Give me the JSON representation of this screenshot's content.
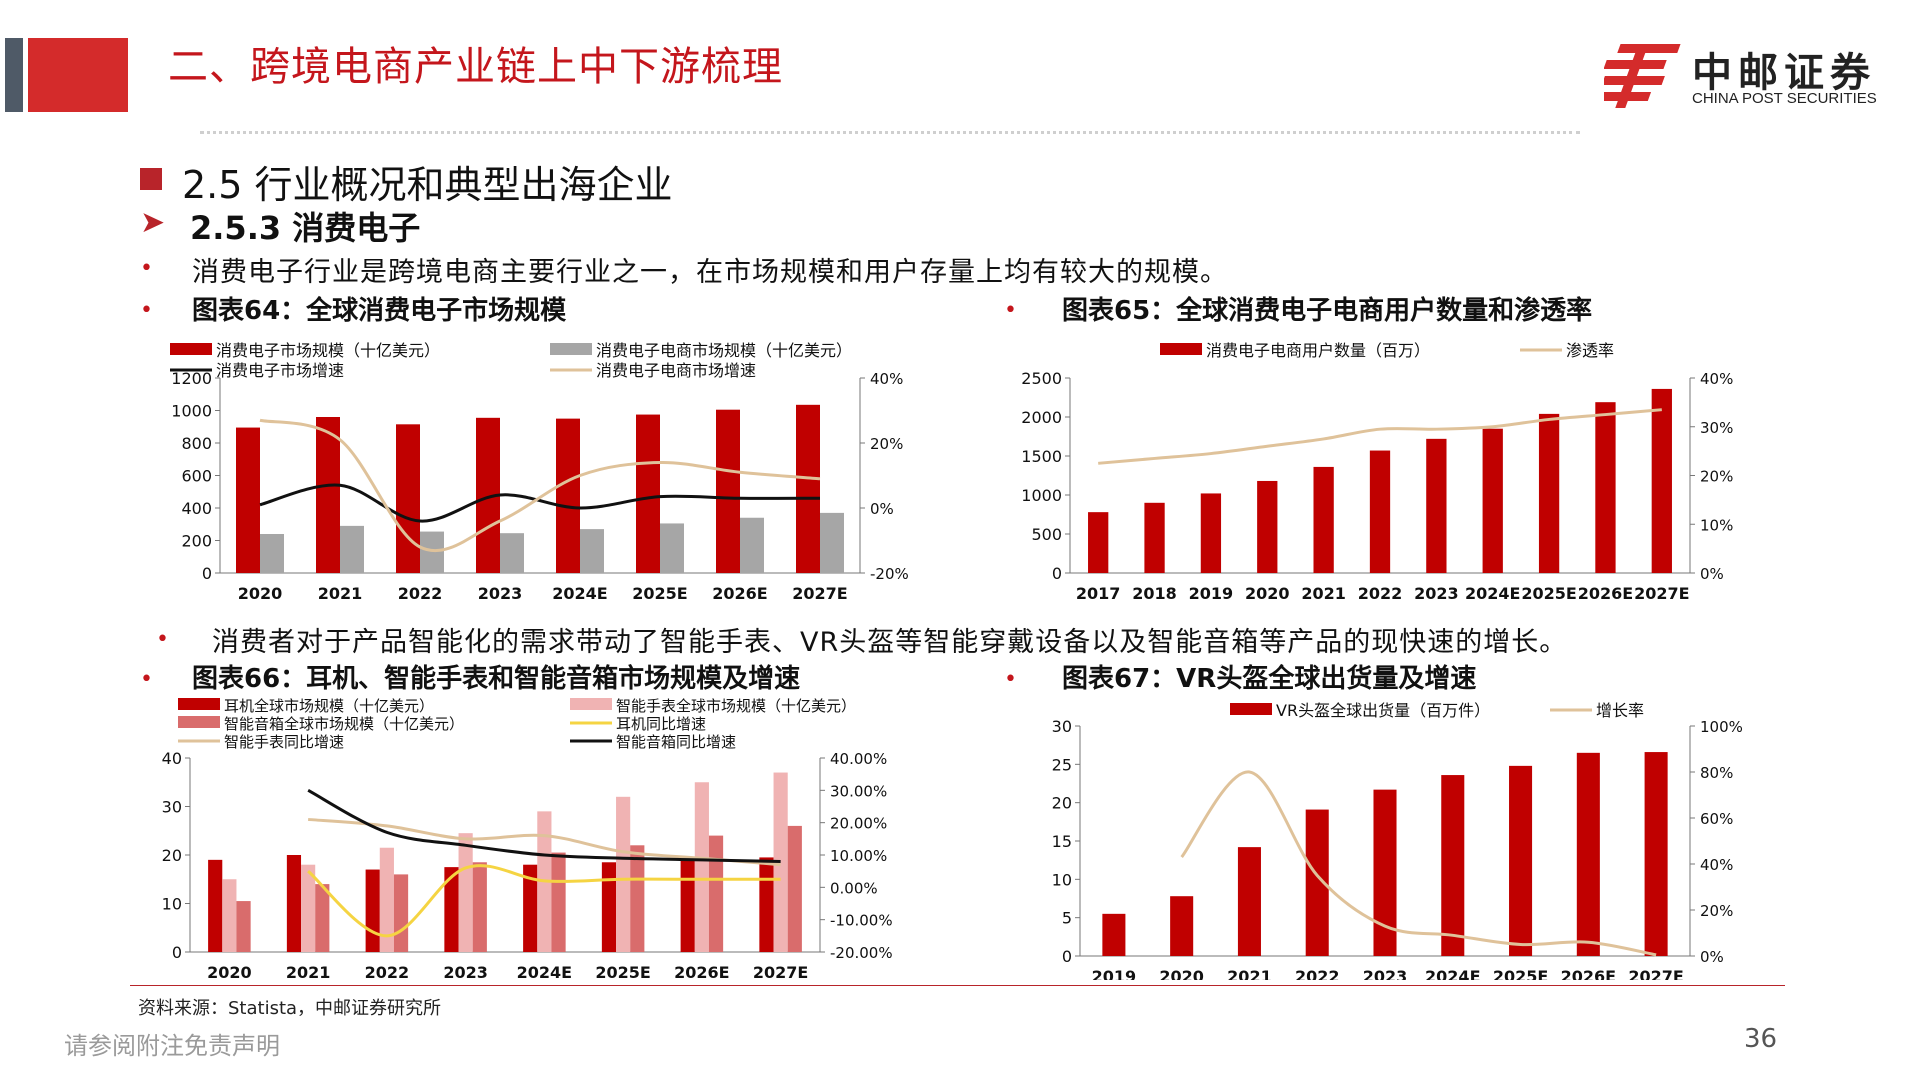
{
  "header": {
    "title": "二、跨境电商产业链上中下游梳理",
    "logo_cn": "中邮证券",
    "logo_en": "CHINA POST SECURITIES"
  },
  "section": {
    "title": "2.5 行业概况和典型出海企业",
    "subtitle": "2.5.3 消费电子",
    "bullet1": "消费电子行业是跨境电商主要行业之一，在市场规模和用户存量上均有较大的规模。",
    "bullet2": "消费者对于产品智能化的需求带动了智能手表、VR头盔等智能穿戴设备以及智能音箱等产品的现快速的增长。"
  },
  "figures": {
    "fig64": "图表64：全球消费电子市场规模",
    "fig65": "图表65：全球消费电子电商用户数量和渗透率",
    "fig66": "图表66：耳机、智能手表和智能音箱市场规模及增速",
    "fig67": "图表67：VR头盔全球出货量及增速"
  },
  "footer": {
    "source": "资料来源：Statista，中邮证券研究所",
    "disclaimer": "请参阅附注免责声明",
    "page": "36"
  },
  "colors": {
    "red": "#c00000",
    "gray": "#a6a6a6",
    "tan": "#dfc29a",
    "pink": "#f0b3b3",
    "salmon": "#d96c6c",
    "yellow": "#f5d442",
    "black": "#111111"
  },
  "chart_data": [
    {
      "id": "fig64",
      "type": "bar",
      "categories": [
        "2020",
        "2021",
        "2022",
        "2023",
        "2024E",
        "2025E",
        "2026E",
        "2027E"
      ],
      "ylim": [
        0,
        1200
      ],
      "yticks": [
        "0",
        "200",
        "400",
        "600",
        "800",
        "1000",
        "1200"
      ],
      "y2lim": [
        -20,
        40
      ],
      "y2ticks": [
        "-20%",
        "0%",
        "20%",
        "40%"
      ],
      "series": [
        {
          "name": "消费电子市场规模（十亿美元）",
          "kind": "bar",
          "axis": "left",
          "color": "#c00000",
          "values": [
            895,
            960,
            915,
            955,
            950,
            975,
            1005,
            1035
          ]
        },
        {
          "name": "消费电子电商市场规模（十亿美元）",
          "kind": "bar",
          "axis": "left",
          "color": "#a6a6a6",
          "values": [
            240,
            290,
            255,
            245,
            270,
            305,
            340,
            370
          ]
        },
        {
          "name": "消费电子市场增速",
          "kind": "line",
          "axis": "right",
          "color": "#111111",
          "values": [
            1,
            7,
            -4,
            4,
            0,
            3.5,
            3,
            3
          ]
        },
        {
          "name": "消费电子电商市场增速",
          "kind": "line",
          "axis": "right",
          "color": "#dfc29a",
          "values": [
            27,
            21,
            -12,
            -4,
            10,
            14,
            11,
            9
          ]
        }
      ]
    },
    {
      "id": "fig65",
      "type": "bar",
      "categories": [
        "2017",
        "2018",
        "2019",
        "2020",
        "2021",
        "2022",
        "2023",
        "2024E",
        "2025E",
        "2026E",
        "2027E"
      ],
      "ylim": [
        0,
        2500
      ],
      "yticks": [
        "0",
        "500",
        "1000",
        "1500",
        "2000",
        "2500"
      ],
      "y2lim": [
        0,
        40
      ],
      "y2ticks": [
        "0%",
        "10%",
        "20%",
        "30%",
        "40%"
      ],
      "series": [
        {
          "name": "消费电子电商用户数量（百万）",
          "kind": "bar",
          "axis": "left",
          "color": "#c00000",
          "values": [
            780,
            900,
            1020,
            1180,
            1360,
            1570,
            1720,
            1850,
            2040,
            2190,
            2360
          ]
        },
        {
          "name": "渗透率",
          "kind": "line",
          "axis": "right",
          "color": "#dfc29a",
          "values": [
            22.5,
            23.5,
            24.5,
            26,
            27.5,
            29.5,
            29.5,
            30,
            31.5,
            32.5,
            33.5
          ]
        }
      ]
    },
    {
      "id": "fig66",
      "type": "bar",
      "categories": [
        "2020",
        "2021",
        "2022",
        "2023",
        "2024E",
        "2025E",
        "2026E",
        "2027E"
      ],
      "ylim": [
        0,
        40
      ],
      "yticks": [
        "0",
        "10",
        "20",
        "30",
        "40"
      ],
      "y2lim": [
        -20,
        40
      ],
      "y2ticks": [
        "-20.00%",
        "-10.00%",
        "0.00%",
        "10.00%",
        "20.00%",
        "30.00%",
        "40.00%"
      ],
      "series": [
        {
          "name": "耳机全球市场规模（十亿美元）",
          "kind": "bar",
          "axis": "left",
          "color": "#c00000",
          "values": [
            19,
            20,
            17,
            17.5,
            18,
            18.5,
            19,
            19.5
          ]
        },
        {
          "name": "智能手表全球市场规模（十亿美元）",
          "kind": "bar",
          "axis": "left",
          "color": "#f0b3b3",
          "values": [
            15,
            18,
            21.5,
            24.5,
            29,
            32,
            35,
            37
          ]
        },
        {
          "name": "智能音箱全球市场规模（十亿美元）",
          "kind": "bar",
          "axis": "left",
          "color": "#d96c6c",
          "values": [
            10.5,
            14,
            16,
            18.5,
            20.5,
            22,
            24,
            26
          ]
        },
        {
          "name": "耳机同比增速",
          "kind": "line",
          "axis": "right",
          "color": "#f5d442",
          "values": [
            null,
            5,
            -15,
            6,
            2,
            2.5,
            2.5,
            2.5
          ]
        },
        {
          "name": "智能手表同比增速",
          "kind": "line",
          "axis": "right",
          "color": "#dfc29a",
          "values": [
            null,
            21,
            19,
            15,
            16,
            11,
            9,
            7
          ]
        },
        {
          "name": "智能音箱同比增速",
          "kind": "line",
          "axis": "right",
          "color": "#111111",
          "values": [
            null,
            30,
            17,
            13,
            10,
            9,
            8.5,
            8
          ]
        }
      ]
    },
    {
      "id": "fig67",
      "type": "bar",
      "categories": [
        "2019",
        "2020",
        "2021",
        "2022",
        "2023",
        "2024E",
        "2025E",
        "2026E",
        "2027E"
      ],
      "ylim": [
        0,
        30
      ],
      "yticks": [
        "0",
        "5",
        "10",
        "15",
        "20",
        "25",
        "30"
      ],
      "y2lim": [
        0,
        100
      ],
      "y2ticks": [
        "0%",
        "20%",
        "40%",
        "60%",
        "80%",
        "100%"
      ],
      "series": [
        {
          "name": "VR头盔全球出货量（百万件）",
          "kind": "bar",
          "axis": "left",
          "color": "#c00000",
          "values": [
            5.5,
            7.8,
            14.2,
            19.1,
            21.7,
            23.6,
            24.8,
            26.5,
            26.6
          ]
        },
        {
          "name": "增长率",
          "kind": "line",
          "axis": "right",
          "color": "#dfc29a",
          "values": [
            null,
            43,
            80,
            35,
            13,
            9,
            5,
            6,
            0.5
          ]
        }
      ]
    }
  ]
}
